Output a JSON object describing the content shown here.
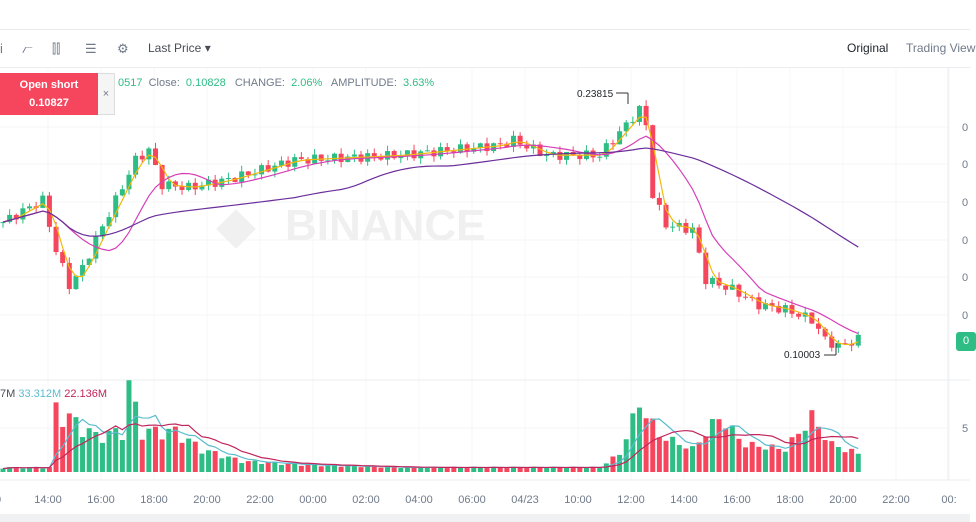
{
  "toolbar": {
    "last_price_label": "Last Price",
    "original_label": "Original",
    "tradingview_label": "Trading View"
  },
  "order": {
    "label": "Open short",
    "price": "0.10827",
    "close_icon": "×"
  },
  "ohlc": {
    "open_partial": "0517",
    "close_label": "Close:",
    "close": "0.10828",
    "change_label": "CHANGE:",
    "change": "2.06%",
    "amplitude_label": "AMPLITUDE:",
    "amplitude": "3.63%"
  },
  "price_axis_labels": [
    "0",
    "0",
    "0",
    "0",
    "0",
    "0"
  ],
  "price_badge": "0",
  "volume_legend": {
    "vol": "7M",
    "ma5": "33.312M",
    "ma10": "22.136M"
  },
  "volume_axis_label": "5",
  "colors": {
    "up": "#2ebd85",
    "down": "#f6465d",
    "ma7": "#f0b90b",
    "ma25": "#d63fb7",
    "ma99": "#6b2e9a",
    "vma5": "#5bbcd0",
    "vma10": "#c2255c"
  },
  "chart_data": {
    "type": "candlestick",
    "interval": "15m",
    "high_label": "0.23815",
    "low_label": "0.10003",
    "close_keypoints": [
      [
        0,
        0.1701
      ],
      [
        6,
        0.1817
      ],
      [
        8,
        0.1554
      ],
      [
        10,
        0.1369
      ],
      [
        12,
        0.1459
      ],
      [
        14,
        0.1607
      ],
      [
        17,
        0.1817
      ],
      [
        20,
        0.2028
      ],
      [
        22,
        0.2081
      ],
      [
        24,
        0.1899
      ],
      [
        28,
        0.1883
      ],
      [
        34,
        0.1925
      ],
      [
        44,
        0.2028
      ],
      [
        60,
        0.2054
      ],
      [
        75,
        0.2107
      ],
      [
        77,
        0.2133
      ],
      [
        82,
        0.2054
      ],
      [
        90,
        0.2054
      ],
      [
        94,
        0.2213
      ],
      [
        96,
        0.2294
      ],
      [
        97,
        0.2213
      ],
      [
        98,
        0.1846
      ],
      [
        100,
        0.1688
      ],
      [
        104,
        0.1662
      ],
      [
        106,
        0.1398
      ],
      [
        110,
        0.1346
      ],
      [
        114,
        0.1266
      ],
      [
        118,
        0.124
      ],
      [
        122,
        0.1187
      ],
      [
        124,
        0.1082
      ],
      [
        126,
        0.1045
      ],
      [
        129,
        0.1082
      ]
    ],
    "volume_keypoints": [
      [
        0,
        5
      ],
      [
        7,
        5
      ],
      [
        8,
        70
      ],
      [
        10,
        60
      ],
      [
        14,
        40
      ],
      [
        18,
        45
      ],
      [
        19,
        95
      ],
      [
        21,
        45
      ],
      [
        26,
        45
      ],
      [
        30,
        25
      ],
      [
        36,
        12
      ],
      [
        45,
        8
      ],
      [
        60,
        5
      ],
      [
        90,
        5
      ],
      [
        93,
        20
      ],
      [
        96,
        75
      ],
      [
        99,
        40
      ],
      [
        104,
        25
      ],
      [
        108,
        60
      ],
      [
        112,
        30
      ],
      [
        118,
        25
      ],
      [
        122,
        60
      ],
      [
        125,
        30
      ],
      [
        129,
        20
      ]
    ],
    "x_ticks": [
      "00",
      "14:00",
      "16:00",
      "18:00",
      "20:00",
      "22:00",
      "00:00",
      "02:00",
      "04:00",
      "06:00",
      "04/23",
      "10:00",
      "12:00",
      "14:00",
      "16:00",
      "18:00",
      "20:00",
      "22:00",
      "00:"
    ]
  }
}
